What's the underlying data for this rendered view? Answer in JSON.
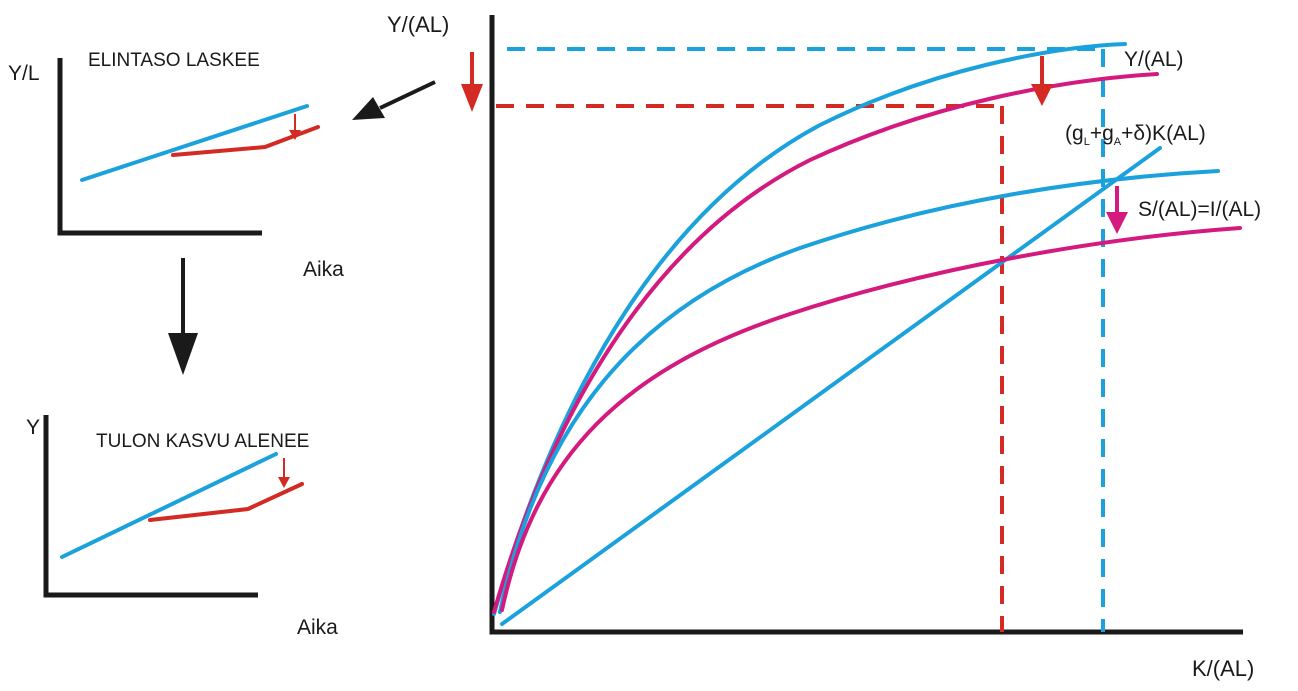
{
  "colors": {
    "blue": "#1ba1dc",
    "red": "#d32a23",
    "magenta": "#d4197f",
    "black": "#1a1a1a"
  },
  "top_panel": {
    "y_label": "Y/L",
    "title": "ELINTASO LASKEE",
    "x_label": "Aika"
  },
  "bottom_panel": {
    "y_label": "Y",
    "title": "TULON KASVU ALENEE",
    "x_label": "Aika"
  },
  "main_panel": {
    "y_label": "Y/(AL)",
    "x_label": "K/(AL)",
    "production_label": "Y/(AL)",
    "savings_label": "S/(AL)=I/(AL)",
    "investment_line_label": {
      "open": "(g",
      "sub1": "L",
      "plus1": "+g",
      "sub2": "A",
      "rest": "+δ)K(AL)"
    }
  },
  "icons": {
    "left_arrow": "arrow-left-down-icon",
    "down_arrow": "arrow-down-icon",
    "red_down_arrow": "red-down-arrow-icon",
    "magenta_down_arrow": "magenta-down-arrow-icon"
  }
}
